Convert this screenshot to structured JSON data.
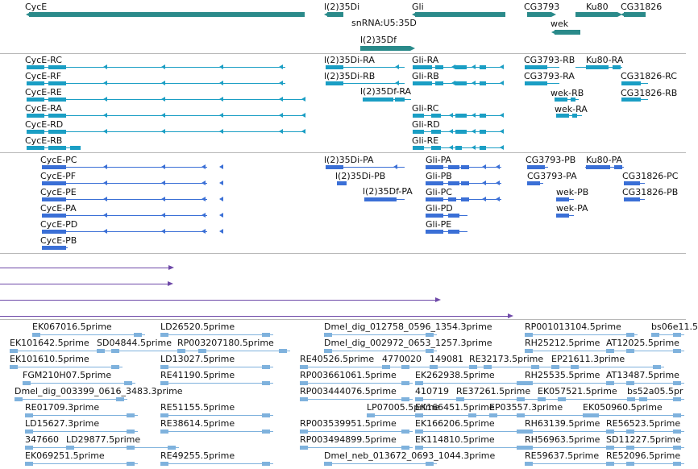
{
  "colors": {
    "gene": "#2a8a8a",
    "transcript": "#1a9ec4",
    "protein": "#3a6fd6",
    "purple": "#6e49a8",
    "est": "#7fb2dd",
    "separator": "#b8b8b8"
  },
  "gene_track": {
    "labels": [
      "CycE",
      "l(2)35Di",
      "snRNA:U5:35D",
      "l(2)35Df",
      "Gli",
      "CG3793",
      "Ku80",
      "CG31826",
      "wek"
    ]
  },
  "transcript_track": {
    "labels": [
      "CycE-RC",
      "CycE-RF",
      "CycE-RE",
      "CycE-RA",
      "CycE-RD",
      "CycE-RB",
      "l(2)35Di-RA",
      "l(2)35Di-RB",
      "l(2)35Df-RA",
      "Gli-RA",
      "Gli-RB",
      "Gli-RC",
      "Gli-RD",
      "Gli-RE",
      "CG3793-RB",
      "Ku80-RA",
      "CG3793-RA",
      "CG31826-RC",
      "wek-RB",
      "CG31826-RB",
      "wek-RA"
    ]
  },
  "protein_track": {
    "labels": [
      "CycE-PC",
      "CycE-PF",
      "CycE-PE",
      "CycE-PA",
      "CycE-PD",
      "CycE-PB",
      "l(2)35Di-PA",
      "l(2)35Di-PB",
      "l(2)35Df-PA",
      "Gli-PA",
      "Gli-PB",
      "Gli-PC",
      "Gli-PD",
      "Gli-PE",
      "CG3793-PB",
      "Ku80-PA",
      "CG3793-PA",
      "CG31826-PC",
      "wek-PB",
      "CG31826-PB",
      "wek-PA"
    ]
  },
  "est_track": {
    "labels": [
      "EK067016.5prime",
      "LD26520.5prime",
      "Dmel_dig_012758_0596_1354.3prime",
      "RP001013104.5prime",
      "bs06e11.5",
      "EK101642.5prime",
      "SD04844.5prime",
      "RP003207180.5prime",
      "Dmel_dig_002972_0653_1257.3prime",
      "RH25212.5prime",
      "AT12025.5prime",
      "EK101610.5prime",
      "LD13027.5prime",
      "RE40526.5prime",
      "4770020",
      "149081",
      "RE32173.5prime",
      "EP21611.3prime",
      "FGM210H07.5prime",
      "RE41190.5prime",
      "RP003661061.5prime",
      "EK262938.5prime",
      "RH25535.5prime",
      "AT13487.5prime",
      "Dmel_dig_003399_0616_3483.3prime",
      "RP003444076.5prime",
      "410719",
      "RE37261.5prime",
      "EK057521.5prime",
      "bs52a05.5pr",
      "RE01709.3prime",
      "RE51155.5prime",
      "LP07005.5prime",
      "EK166451.5prime",
      "EP03557.3prime",
      "EK050960.5prime",
      "LD15627.3prime",
      "RE38614.5prime",
      "RP003539951.5prime",
      "EK166206.5prime",
      "RH63139.5prime",
      "RE56523.5prime",
      "347660",
      "LD29877.5prime",
      "RP003494899.5prime",
      "EK114810.5prime",
      "RH56963.5prime",
      "SD11227.5prime",
      "EK069251.5prime",
      "RE49255.5prime",
      "Dmel_neb_013672_0693_1044.3prime",
      "RE59637.5prime",
      "RE52096.5prime"
    ]
  }
}
